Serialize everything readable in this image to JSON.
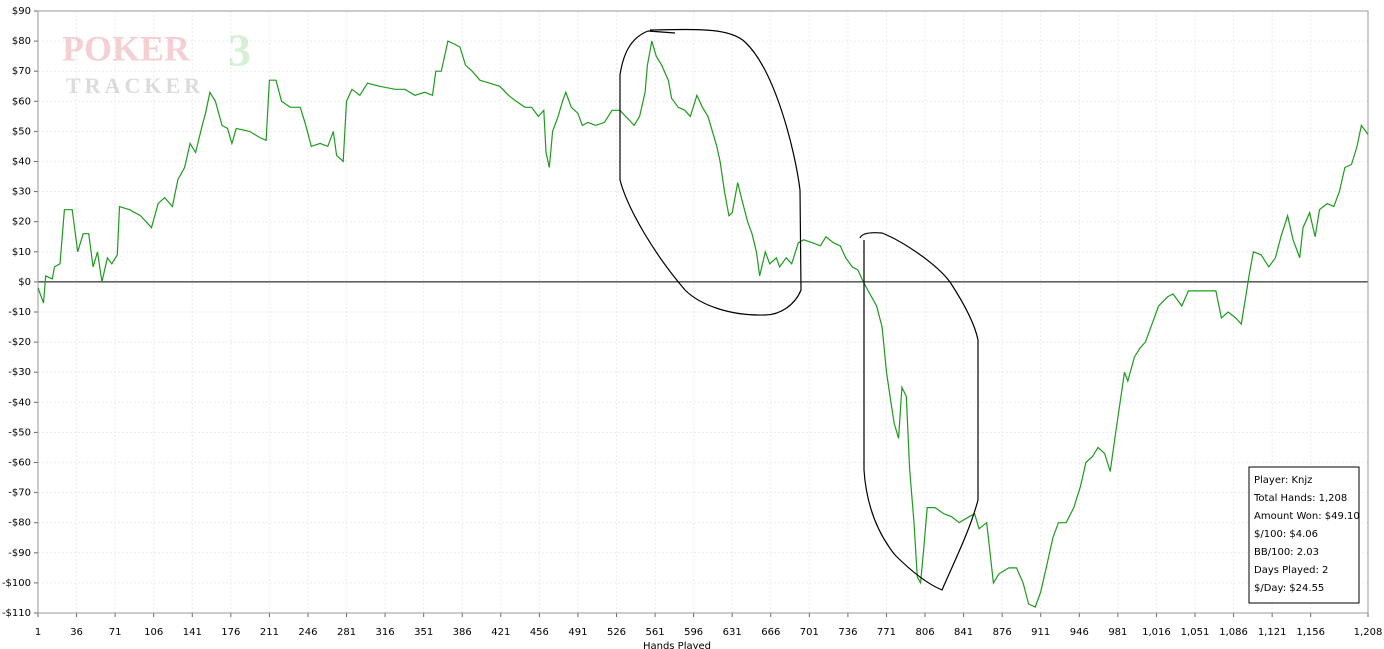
{
  "chart_data": {
    "type": "line",
    "x_label": "Hands Played",
    "watermark": [
      "POKER",
      "TRACKER",
      "3"
    ],
    "stats": [
      "Player: Knjz",
      "Total Hands: 1,208",
      "Amount Won: $49.10",
      "$/100: $4.06",
      "BB/100: 2.03",
      "Days Played: 2",
      "$/Day: $24.55"
    ],
    "color": "#1f9a1f",
    "grid": true,
    "xlim": [
      1,
      1208
    ],
    "ylim": [
      -110,
      90
    ],
    "xticks": [
      1,
      36,
      71,
      106,
      141,
      176,
      211,
      246,
      281,
      316,
      351,
      386,
      421,
      456,
      491,
      526,
      561,
      596,
      631,
      666,
      701,
      736,
      771,
      806,
      841,
      876,
      911,
      946,
      981,
      {
        "value": 1016,
        "label": "1,016"
      },
      {
        "value": 1051,
        "label": "1,051"
      },
      {
        "value": 1086,
        "label": "1,086"
      },
      {
        "value": 1121,
        "label": "1,121"
      },
      {
        "value": 1156,
        "label": "1,156"
      },
      {
        "value": 1208,
        "label": "1,208"
      }
    ],
    "yticks": [
      {
        "value": 90,
        "label": "$90"
      },
      {
        "value": 80,
        "label": "$80"
      },
      {
        "value": 70,
        "label": "$70"
      },
      {
        "value": 60,
        "label": "$60"
      },
      {
        "value": 50,
        "label": "$50"
      },
      {
        "value": 40,
        "label": "$40"
      },
      {
        "value": 30,
        "label": "$30"
      },
      {
        "value": 20,
        "label": "$20"
      },
      {
        "value": 10,
        "label": "$10"
      },
      {
        "value": 0,
        "label": "$0"
      },
      {
        "value": -10,
        "label": "-$10"
      },
      {
        "value": -20,
        "label": "-$20"
      },
      {
        "value": -30,
        "label": "-$30"
      },
      {
        "value": -40,
        "label": "-$40"
      },
      {
        "value": -50,
        "label": "-$50"
      },
      {
        "value": -60,
        "label": "-$60"
      },
      {
        "value": -70,
        "label": "-$70"
      },
      {
        "value": -80,
        "label": "-$80"
      },
      {
        "value": -90,
        "label": "-$90"
      },
      {
        "value": -100,
        "label": "-$100"
      },
      {
        "value": -110,
        "label": "-$110"
      }
    ],
    "x": [
      1,
      4,
      6,
      8,
      14,
      16,
      21,
      25,
      32,
      37,
      42,
      47,
      51,
      55,
      59,
      64,
      68,
      73,
      75,
      84,
      94,
      104,
      110,
      116,
      123,
      128,
      134,
      139,
      144,
      150,
      153,
      157,
      162,
      168,
      173,
      177,
      181,
      193,
      202,
      208,
      211,
      217,
      222,
      230,
      239,
      244,
      249,
      257,
      264,
      269,
      272,
      278,
      281,
      286,
      293,
      300,
      311,
      325,
      334,
      343,
      352,
      359,
      362,
      367,
      373,
      379,
      384,
      389,
      395,
      402,
      411,
      420,
      428,
      435,
      443,
      449,
      455,
      460,
      462,
      465,
      468,
      473,
      477,
      480,
      485,
      491,
      495,
      500,
      507,
      515,
      522,
      529,
      537,
      542,
      547,
      552,
      554,
      558,
      562,
      567,
      573,
      576,
      582,
      588,
      593,
      599,
      604,
      609,
      613,
      617,
      620,
      624,
      628,
      631,
      636,
      640,
      645,
      649,
      653,
      656,
      661,
      665,
      671,
      674,
      680,
      685,
      691,
      696,
      704,
      711,
      716,
      723,
      729,
      734,
      740,
      745,
      750,
      756,
      762,
      767,
      771,
      775,
      778,
      782,
      785,
      789,
      792,
      796,
      799,
      802,
      805,
      808,
      815,
      823,
      830,
      837,
      846,
      851,
      855,
      862,
      868,
      873,
      882,
      889,
      895,
      900,
      906,
      911,
      916,
      922,
      927,
      934,
      941,
      947,
      952,
      958,
      963,
      969,
      974,
      979,
      983,
      987,
      990,
      996,
      1001,
      1006,
      1011,
      1018,
      1026,
      1031,
      1039,
      1045,
      1054,
      1063,
      1070,
      1075,
      1081,
      1088,
      1093,
      1097,
      1100,
      1104,
      1111,
      1118,
      1124,
      1129,
      1135,
      1140,
      1146,
      1149,
      1155,
      1160,
      1164,
      1171,
      1177,
      1182,
      1187,
      1193,
      1198,
      1202,
      1208
    ],
    "values": [
      -2,
      -5,
      -7,
      2,
      1,
      5,
      6,
      24,
      24,
      10,
      16,
      16,
      5,
      10,
      0,
      8,
      6,
      9,
      25,
      24,
      22,
      18,
      26,
      28,
      25,
      34,
      38,
      46,
      43,
      52,
      56,
      63,
      60,
      52,
      51,
      46,
      51,
      50,
      48,
      47,
      67,
      67,
      60,
      58,
      58,
      52,
      45,
      46,
      45,
      50,
      42,
      40,
      60,
      64,
      62,
      66,
      65,
      64,
      64,
      62,
      63,
      62,
      70,
      70,
      80,
      79,
      78,
      72,
      70,
      67,
      66,
      65,
      62,
      60,
      58,
      58,
      55,
      57,
      43,
      38,
      50,
      55,
      60,
      63,
      58,
      56,
      52,
      53,
      52,
      53,
      57,
      57,
      54,
      52,
      55,
      63,
      72,
      80,
      75,
      72,
      67,
      61,
      58,
      57,
      55,
      62,
      58,
      55,
      50,
      45,
      40,
      30,
      22,
      23,
      33,
      27,
      20,
      16,
      10,
      2,
      10,
      6,
      8,
      5,
      8,
      6,
      13,
      14,
      13,
      12,
      15,
      13,
      12,
      8,
      5,
      4,
      0,
      -4,
      -8,
      -15,
      -30,
      -40,
      -47,
      -52,
      -35,
      -38,
      -62,
      -80,
      -98,
      -100,
      -88,
      -75,
      -75,
      -77,
      -78,
      -80,
      -78,
      -77,
      -82,
      -80,
      -100,
      -97,
      -95,
      -95,
      -100,
      -107,
      -108,
      -103,
      -95,
      -85,
      -80,
      -80,
      -75,
      -68,
      -60,
      -58,
      -55,
      -57,
      -63,
      -50,
      -40,
      -30,
      -33,
      -25,
      -22,
      -20,
      -15,
      -8,
      -5,
      -4,
      -8,
      -3,
      -3,
      -3,
      -3,
      -12,
      -10,
      -12,
      -14,
      -5,
      2,
      10,
      9,
      5,
      8,
      15,
      22,
      14,
      8,
      18,
      23,
      15,
      24,
      26,
      25,
      30,
      38,
      39,
      45,
      52,
      49
    ]
  }
}
